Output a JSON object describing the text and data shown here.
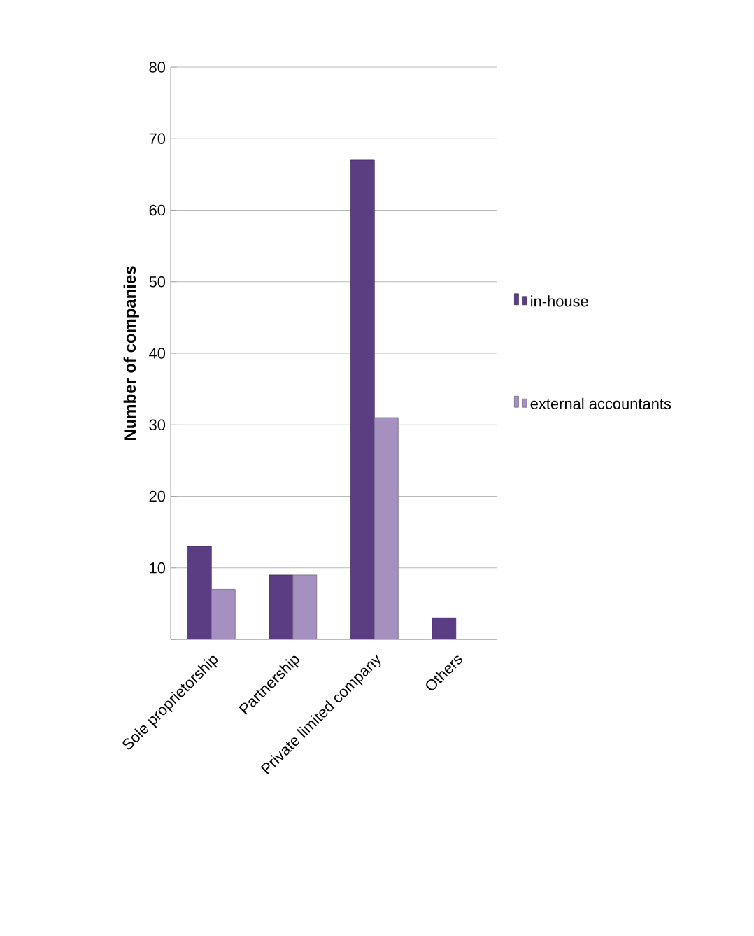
{
  "chart_data": {
    "type": "bar",
    "ylabel": "Number of companies",
    "categories": [
      "Sole proprietorship",
      "Partnership",
      "Private limited company",
      "Others"
    ],
    "series": [
      {
        "name": "in-house",
        "color": "#5b3d84",
        "values": [
          13,
          9,
          67,
          3
        ]
      },
      {
        "name": "external accountants",
        "color": "#a590c0",
        "values": [
          7,
          9,
          31,
          null
        ]
      }
    ],
    "ylim": [
      0,
      80
    ],
    "yticks": [
      {
        "value": 0,
        "label": null
      },
      10,
      20,
      30,
      40,
      50,
      60,
      70,
      80
    ],
    "grid": "y",
    "legend": "right"
  }
}
